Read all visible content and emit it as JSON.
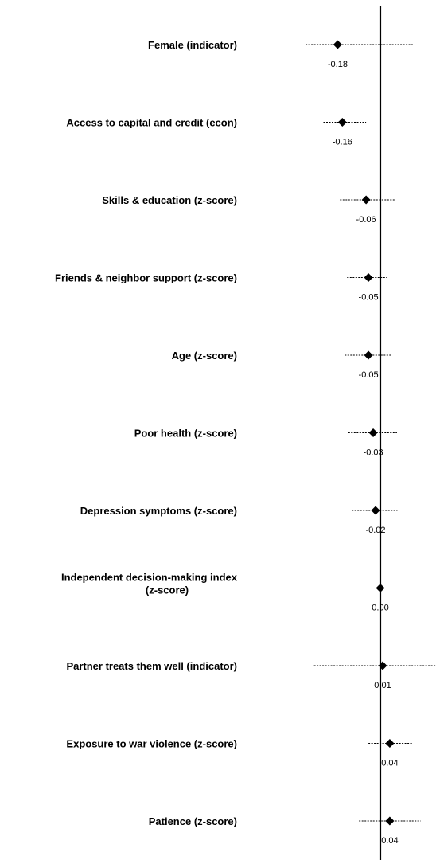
{
  "chart_data": {
    "type": "scatter",
    "subtype": "coefficient plot with confidence intervals",
    "orientation": "horizontal",
    "title": "",
    "xlabel": "",
    "ylabel": "",
    "reference_line": 0,
    "marker": "diamond",
    "grid": false,
    "legend": "none",
    "colors": {
      "marker": "#000000",
      "error_bar": "#000000",
      "reference_line": "#000000",
      "text": "#000000"
    },
    "points": [
      {
        "label": "Female (indicator)",
        "value": -0.18,
        "value_label": "-0.18",
        "ci": [
          -0.315,
          0.137
        ]
      },
      {
        "label": "Access to capital and credit (econ)",
        "value": -0.16,
        "value_label": "-0.16",
        "ci": [
          -0.24,
          -0.06
        ]
      },
      {
        "label": "Skills & education (z-score)",
        "value": -0.06,
        "value_label": "-0.06",
        "ci": [
          -0.17,
          0.06
        ]
      },
      {
        "label": "Friends & neighbor support (z-score)",
        "value": -0.05,
        "value_label": "-0.05",
        "ci": [
          -0.14,
          0.03
        ]
      },
      {
        "label": "Age (z-score)",
        "value": -0.05,
        "value_label": "-0.05",
        "ci": [
          -0.15,
          0.045
        ]
      },
      {
        "label": "Poor health (z-score)",
        "value": -0.03,
        "value_label": "-0.03",
        "ci": [
          -0.135,
          0.07
        ]
      },
      {
        "label": "Depression symptoms (z-score)",
        "value": -0.02,
        "value_label": "-0.02",
        "ci": [
          -0.12,
          0.072
        ]
      },
      {
        "label": [
          "Independent decision-making index",
          "(z-score)"
        ],
        "value": 0.0,
        "value_label": "0.00",
        "ci": [
          -0.09,
          0.095
        ]
      },
      {
        "label": "Partner treats them well (indicator)",
        "value": 0.01,
        "value_label": "0.01",
        "ci": [
          -0.28,
          0.26
        ]
      },
      {
        "label": "Exposure to war violence (z-score)",
        "value": 0.04,
        "value_label": "0.04",
        "ci": [
          -0.05,
          0.135
        ]
      },
      {
        "label": "Patience (z-score)",
        "value": 0.04,
        "value_label": "0.04",
        "ci": [
          -0.09,
          0.17
        ]
      }
    ]
  }
}
